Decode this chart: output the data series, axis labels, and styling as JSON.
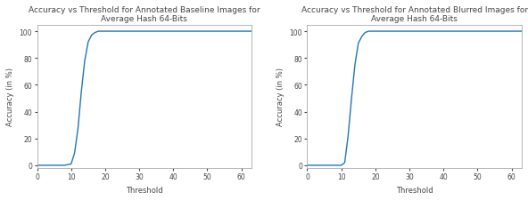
{
  "plot1": {
    "title": "Accuracy vs Threshold for Annotated Baseline Images for\nAverage Hash 64-Bits",
    "xlabel": "Threshold",
    "ylabel": "Accuracy (in %)",
    "x": [
      0,
      1,
      2,
      3,
      4,
      5,
      6,
      7,
      8,
      9,
      10,
      11,
      12,
      13,
      14,
      15,
      16,
      17,
      18,
      19,
      20,
      25,
      30,
      35,
      40,
      45,
      50,
      55,
      60,
      63
    ],
    "y": [
      0,
      0,
      0,
      0,
      0,
      0,
      0,
      0,
      0,
      0.5,
      1,
      9,
      27,
      55,
      78,
      92,
      97,
      99,
      100,
      100,
      100,
      100,
      100,
      100,
      100,
      100,
      100,
      100,
      100,
      100
    ],
    "xlim": [
      0,
      63
    ],
    "ylim": [
      -2,
      105
    ],
    "xticks": [
      0,
      10,
      20,
      30,
      40,
      50,
      60
    ],
    "yticks": [
      0,
      20,
      40,
      60,
      80,
      100
    ],
    "line_color": "#1f77b4"
  },
  "plot2": {
    "title": "Accuracy vs Threshold for Annotated Blurred Images for\nAverage Hash 64-Bits",
    "xlabel": "Threshold",
    "ylabel": "Accuracy (in %)",
    "x": [
      0,
      1,
      2,
      3,
      4,
      5,
      6,
      7,
      8,
      9,
      10,
      11,
      12,
      13,
      14,
      15,
      16,
      17,
      18,
      19,
      20,
      25,
      30,
      35,
      40,
      45,
      50,
      55,
      60,
      63
    ],
    "y": [
      0,
      0,
      0,
      0,
      0,
      0,
      0,
      0,
      0,
      0,
      0,
      2,
      22,
      50,
      75,
      91,
      96,
      99,
      100,
      100,
      100,
      100,
      100,
      100,
      100,
      100,
      100,
      100,
      100,
      100
    ],
    "xlim": [
      0,
      63
    ],
    "ylim": [
      -2,
      105
    ],
    "xticks": [
      0,
      10,
      20,
      30,
      40,
      50,
      60
    ],
    "yticks": [
      0,
      20,
      40,
      60,
      80,
      100
    ],
    "line_color": "#1f77b4"
  },
  "title_fontsize": 6.5,
  "label_fontsize": 6,
  "tick_fontsize": 5.5,
  "line_width": 1.0,
  "bg_color": "#ffffff",
  "axes_bg_color": "#ffffff",
  "spine_color": "#aaaaaa",
  "text_color": "#444444"
}
